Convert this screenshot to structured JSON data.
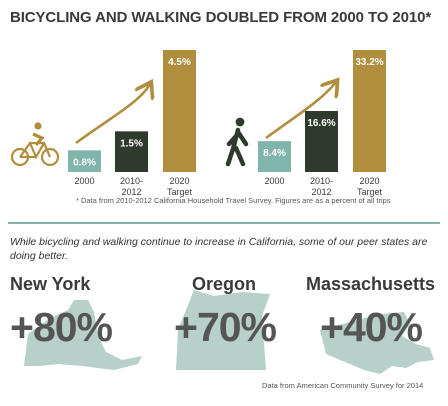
{
  "title": "BICYCLING AND WALKING DOUBLED FROM 2000 TO 2010*",
  "chart_data": [
    {
      "type": "bar",
      "mode": "bicycling",
      "icon": "bicycle-icon",
      "categories": [
        "2000",
        "2010-2012",
        "2020 Target"
      ],
      "values": [
        0.8,
        1.5,
        4.5
      ],
      "value_labels": [
        "0.8%",
        "1.5%",
        "4.5%"
      ],
      "colors": [
        "#7fb5ab",
        "#2e3b2c",
        "#b08e3e"
      ],
      "ylim": [
        0,
        4.5
      ]
    },
    {
      "type": "bar",
      "mode": "walking",
      "icon": "pedestrian-icon",
      "categories": [
        "2000",
        "2010-2012",
        "2020 Target"
      ],
      "values": [
        8.4,
        16.6,
        33.2
      ],
      "value_labels": [
        "8.4%",
        "16.6%",
        "33.2%"
      ],
      "colors": [
        "#7fb5ab",
        "#2e3b2c",
        "#b08e3e"
      ],
      "ylim": [
        0,
        33.2
      ]
    }
  ],
  "footnote": "* Data from 2010-2012 California Household Travel Survey. Figures are as a percent of all trips",
  "intro": "While bicycling and walking continue to increase in California, some of our peer states are doing better.",
  "states": [
    {
      "name": "New York",
      "value": "+80%"
    },
    {
      "name": "Oregon",
      "value": "+70%"
    },
    {
      "name": "Massachusetts",
      "value": "+40%"
    }
  ],
  "source": "Data from American Community Survey for 2014",
  "colors": {
    "teal": "#7fb5ab",
    "dark": "#2e3b2c",
    "gold": "#b08e3e",
    "map": "#b7d0c9",
    "text": "#3a3a3a"
  }
}
